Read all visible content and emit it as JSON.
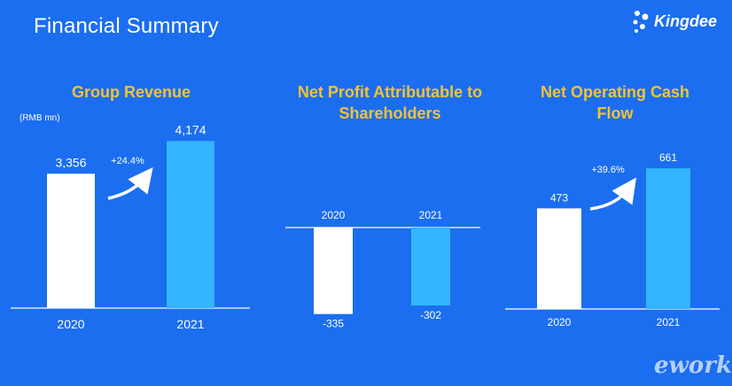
{
  "page": {
    "title": "Financial Summary"
  },
  "logo": {
    "text": "Kingdee"
  },
  "watermark": "eworks",
  "unit_label": "(RMB mn)",
  "colors": {
    "background": "#1b6ef0",
    "bar_2020": "#ffffff",
    "bar_2021": "#33b5ff",
    "title": "#f6c233"
  },
  "chart_data": [
    {
      "type": "bar",
      "title": "Group Revenue",
      "categories": [
        "2020",
        "2021"
      ],
      "values": [
        3356,
        4174
      ],
      "value_labels": [
        "3,356",
        "4,174"
      ],
      "growth_annotation": "+24.4%",
      "ylim": [
        0,
        4600
      ]
    },
    {
      "type": "bar",
      "title": "Net Profit Attributable to Shareholders",
      "categories": [
        "2020",
        "2021"
      ],
      "values": [
        -335,
        -302
      ],
      "value_labels": [
        "-335",
        "-302"
      ],
      "ylim": [
        -360,
        0
      ]
    },
    {
      "type": "bar",
      "title": "Net Operating Cash Flow",
      "categories": [
        "2020",
        "2021"
      ],
      "values": [
        473,
        661
      ],
      "value_labels": [
        "473",
        "661"
      ],
      "growth_annotation": "+39.6%",
      "ylim": [
        0,
        720
      ]
    }
  ]
}
